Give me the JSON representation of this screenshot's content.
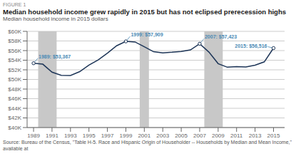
{
  "chart_data": {
    "type": "line",
    "figure_label": "FIGURE 1",
    "title": "Median household income grew rapidly in 2015 but has not eclipsed prerecession highs",
    "subtitle": "Median household income in 2015 dollars",
    "source": "Source: Bureau of the Census, \"Table H-5. Race and Hispanic Origin of Householder -- Households by Median and Mean Income,\" available at",
    "x": [
      1989,
      1990,
      1991,
      1992,
      1993,
      1994,
      1995,
      1996,
      1997,
      1998,
      1999,
      2000,
      2001,
      2002,
      2003,
      2004,
      2005,
      2006,
      2007,
      2008,
      2009,
      2010,
      2011,
      2012,
      2013,
      2014,
      2015
    ],
    "values": [
      53367,
      53174,
      51508,
      50860,
      50823,
      51622,
      52985,
      54068,
      55465,
      57005,
      57909,
      57790,
      56800,
      55770,
      55525,
      55650,
      55822,
      56143,
      57423,
      55690,
      53285,
      52542,
      52666,
      52605,
      52961,
      53657,
      56516
    ],
    "color": "#1d3557",
    "xlim": [
      1988.3,
      2016.2
    ],
    "xticks": [
      1989,
      1991,
      1993,
      1995,
      1997,
      1999,
      2001,
      2003,
      2005,
      2007,
      2009,
      2011,
      2013,
      2015
    ],
    "ylim": [
      40000,
      60000
    ],
    "yticks": [
      {
        "value": 40000,
        "label": "$40K"
      },
      {
        "value": 42000,
        "label": "$42K"
      },
      {
        "value": 44000,
        "label": "$44K"
      },
      {
        "value": 46000,
        "label": "$46K"
      },
      {
        "value": 48000,
        "label": "$48K"
      },
      {
        "value": 50000,
        "label": "$50K"
      },
      {
        "value": 52000,
        "label": "$52K"
      },
      {
        "value": 54000,
        "label": "$54K"
      },
      {
        "value": 56000,
        "label": "$56K"
      },
      {
        "value": 58000,
        "label": "$58K"
      },
      {
        "value": 60000,
        "label": "$60K"
      }
    ],
    "grid": true,
    "recession_bars": {
      "color": "#c8c8c8",
      "spans": [
        {
          "start": 1990,
          "end": 1991
        },
        {
          "start": 2001,
          "end": 2001
        },
        {
          "start": 2008,
          "end": 2009
        }
      ]
    },
    "annotations": [
      {
        "x": 1989,
        "y": 53367,
        "label": "1989: $53,367",
        "color": "#4a8ab5"
      },
      {
        "x": 1999,
        "y": 57909,
        "label": "1999: $57,909",
        "color": "#4a8ab5"
      },
      {
        "x": 2007,
        "y": 57423,
        "label": "2007: $57,423",
        "color": "#4a8ab5"
      },
      {
        "x": 2015,
        "y": 56516,
        "label": "2015: $56,516",
        "color": "#4a8ab5"
      }
    ]
  }
}
